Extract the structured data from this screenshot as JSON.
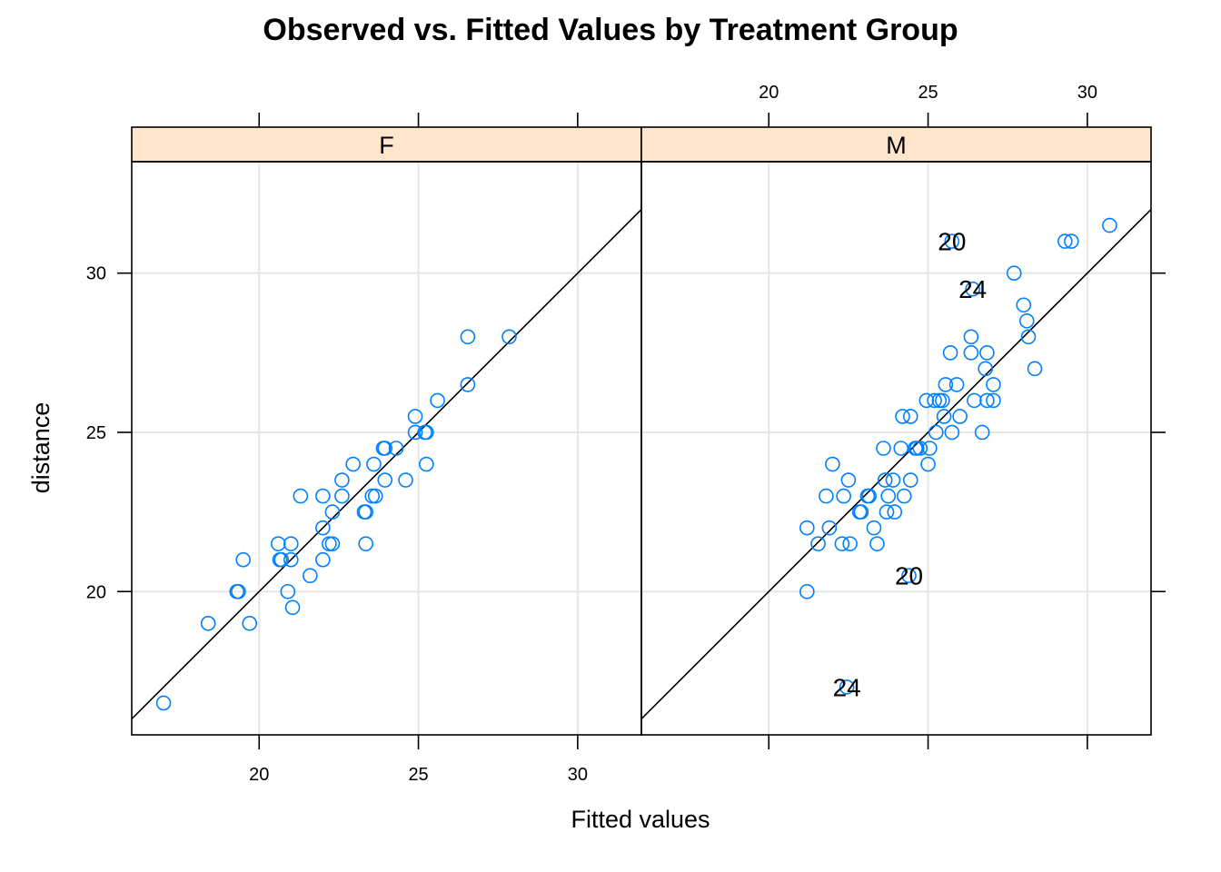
{
  "chart_data": {
    "type": "scatter",
    "title": "Observed vs. Fitted Values by Treatment Group",
    "xlabel": "Fitted values",
    "ylabel": "distance",
    "xlim": [
      16,
      32
    ],
    "ylim": [
      15.5,
      33.5
    ],
    "x_ticks": [
      20,
      25,
      30
    ],
    "y_ticks": [
      20,
      25,
      30
    ],
    "grid": true,
    "reference_line": "y = x",
    "point_color": "#0080ff",
    "strip_color": "#ffe5cc",
    "grid_color": "#e6e6e6",
    "panels": [
      {
        "label": "F",
        "points": [
          [
            17.0,
            16.5
          ],
          [
            18.4,
            19.0
          ],
          [
            19.3,
            20.0
          ],
          [
            19.35,
            20.0
          ],
          [
            19.5,
            21.0
          ],
          [
            19.7,
            19.0
          ],
          [
            20.6,
            21.5
          ],
          [
            20.65,
            21.0
          ],
          [
            20.7,
            21.0
          ],
          [
            20.9,
            20.0
          ],
          [
            21.0,
            21.5
          ],
          [
            21.0,
            21.0
          ],
          [
            21.05,
            19.5
          ],
          [
            21.3,
            23.0
          ],
          [
            21.6,
            20.5
          ],
          [
            22.0,
            23.0
          ],
          [
            22.0,
            22.0
          ],
          [
            22.0,
            21.0
          ],
          [
            22.2,
            21.5
          ],
          [
            22.3,
            22.5
          ],
          [
            22.3,
            21.5
          ],
          [
            22.6,
            23.5
          ],
          [
            22.6,
            23.0
          ],
          [
            22.95,
            24.0
          ],
          [
            23.3,
            22.5
          ],
          [
            23.35,
            22.5
          ],
          [
            23.35,
            21.5
          ],
          [
            23.55,
            23.0
          ],
          [
            23.65,
            23.0
          ],
          [
            23.6,
            24.0
          ],
          [
            23.9,
            24.5
          ],
          [
            23.95,
            24.5
          ],
          [
            23.95,
            23.5
          ],
          [
            24.3,
            24.5
          ],
          [
            24.6,
            23.5
          ],
          [
            24.9,
            25.5
          ],
          [
            24.9,
            25.0
          ],
          [
            25.2,
            25.0
          ],
          [
            25.25,
            25.0
          ],
          [
            25.25,
            24.0
          ],
          [
            25.6,
            26.0
          ],
          [
            26.55,
            28.0
          ],
          [
            26.55,
            26.5
          ],
          [
            27.85,
            28.0
          ]
        ],
        "labeled_points": []
      },
      {
        "label": "M",
        "points": [
          [
            21.2,
            22.0
          ],
          [
            21.2,
            20.0
          ],
          [
            21.55,
            21.5
          ],
          [
            21.8,
            23.0
          ],
          [
            21.9,
            22.0
          ],
          [
            22.0,
            24.0
          ],
          [
            22.3,
            21.5
          ],
          [
            22.35,
            23.0
          ],
          [
            22.5,
            23.5
          ],
          [
            22.55,
            21.5
          ],
          [
            22.85,
            22.5
          ],
          [
            22.9,
            22.5
          ],
          [
            23.1,
            23.0
          ],
          [
            23.15,
            23.0
          ],
          [
            23.3,
            22.0
          ],
          [
            23.4,
            21.5
          ],
          [
            23.6,
            24.5
          ],
          [
            23.65,
            23.5
          ],
          [
            23.7,
            22.5
          ],
          [
            23.75,
            23.0
          ],
          [
            23.9,
            23.5
          ],
          [
            23.95,
            22.5
          ],
          [
            24.15,
            24.5
          ],
          [
            24.2,
            25.5
          ],
          [
            24.25,
            23.0
          ],
          [
            24.45,
            25.5
          ],
          [
            24.45,
            23.5
          ],
          [
            24.6,
            24.5
          ],
          [
            24.65,
            24.5
          ],
          [
            24.75,
            24.5
          ],
          [
            24.95,
            26.0
          ],
          [
            25.0,
            24.0
          ],
          [
            25.05,
            24.5
          ],
          [
            25.2,
            26.0
          ],
          [
            25.25,
            25.0
          ],
          [
            25.35,
            26.0
          ],
          [
            25.45,
            26.0
          ],
          [
            25.5,
            25.5
          ],
          [
            25.55,
            26.5
          ],
          [
            25.7,
            27.5
          ],
          [
            25.75,
            25.0
          ],
          [
            25.9,
            26.5
          ],
          [
            26.0,
            25.5
          ],
          [
            26.35,
            28.0
          ],
          [
            26.35,
            27.5
          ],
          [
            26.45,
            26.0
          ],
          [
            26.7,
            25.0
          ],
          [
            26.8,
            27.0
          ],
          [
            26.85,
            27.5
          ],
          [
            26.85,
            26.0
          ],
          [
            27.05,
            26.5
          ],
          [
            27.05,
            26.0
          ],
          [
            27.7,
            30.0
          ],
          [
            28.0,
            29.0
          ],
          [
            28.1,
            28.5
          ],
          [
            28.15,
            28.0
          ],
          [
            28.35,
            27.0
          ],
          [
            29.3,
            31.0
          ],
          [
            29.5,
            31.0
          ],
          [
            30.7,
            31.5
          ]
        ],
        "labeled_points": [
          {
            "label": "20",
            "x": 25.75,
            "y": 31.0
          },
          {
            "label": "24",
            "x": 26.4,
            "y": 29.5
          },
          {
            "label": "20",
            "x": 24.4,
            "y": 20.5
          },
          {
            "label": "24",
            "x": 22.45,
            "y": 17.0
          }
        ]
      }
    ]
  }
}
